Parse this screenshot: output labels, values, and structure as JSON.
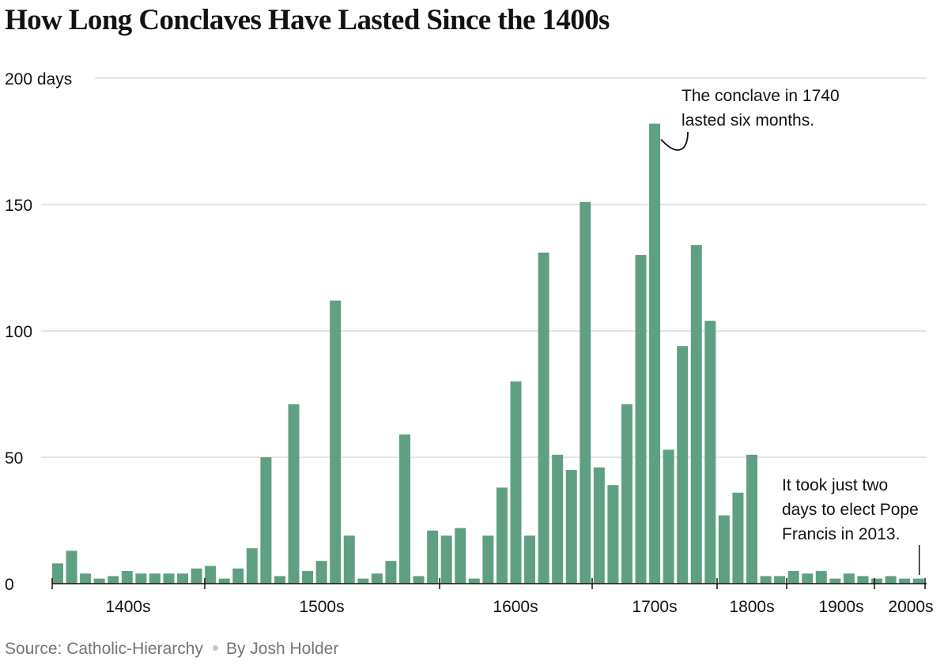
{
  "chart_data": {
    "type": "bar",
    "title": "How Long Conclaves Have Lasted Since the 1400s",
    "ylabel": "days",
    "ylim": [
      0,
      200
    ],
    "yticks": [
      {
        "value": 0,
        "label": "0"
      },
      {
        "value": 50,
        "label": "50"
      },
      {
        "value": 100,
        "label": "100"
      },
      {
        "value": 150,
        "label": "150"
      },
      {
        "value": 200,
        "label": "200 days"
      }
    ],
    "xtick_labels": [
      "1400s",
      "1500s",
      "1600s",
      "1700s",
      "1800s",
      "1900s",
      "2000s"
    ],
    "values": [
      8,
      13,
      4,
      2,
      3,
      5,
      4,
      4,
      4,
      4,
      6,
      7,
      2,
      6,
      14,
      50,
      3,
      71,
      5,
      9,
      112,
      19,
      2,
      4,
      9,
      59,
      3,
      21,
      19,
      22,
      2,
      19,
      38,
      80,
      19,
      131,
      51,
      45,
      151,
      46,
      39,
      71,
      130,
      182,
      53,
      94,
      134,
      104,
      27,
      36,
      51,
      3,
      3,
      5,
      4,
      5,
      2,
      4,
      3,
      2,
      3,
      2,
      2
    ],
    "bar_color": "#5fa083",
    "grid": true,
    "annotations": [
      {
        "lines": [
          "The conclave in 1740",
          "lasted six months."
        ],
        "target_index": 43
      },
      {
        "lines": [
          "It took just two",
          "days to elect Pope",
          "Francis in 2013."
        ],
        "target_index": 62
      }
    ]
  },
  "footer": {
    "source": "Source: Catholic-Hierarchy",
    "byline": "By Josh Holder"
  }
}
